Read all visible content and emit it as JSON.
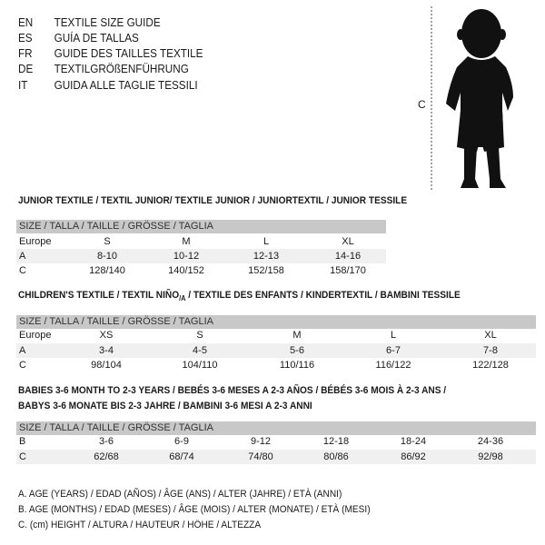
{
  "languages": [
    {
      "code": "EN",
      "title": "TEXTILE SIZE GUIDE"
    },
    {
      "code": "ES",
      "title": "GUÍA DE TALLAS"
    },
    {
      "code": "FR",
      "title": "GUIDE DES TAILLES TEXTILE"
    },
    {
      "code": "DE",
      "title": "TEXTILGRÖßENFÜHRUNG"
    },
    {
      "code": "IT",
      "title": "GUIDA ALLE TAGLIE TESSILI"
    }
  ],
  "figure": {
    "measure_label": "C",
    "icon": "child-silhouette"
  },
  "size_header": "SIZE / TALLA / TAILLE / GRÖSSE / TAGLIA",
  "junior": {
    "title": "JUNIOR TEXTILE / TEXTIL JUNIOR/ TEXTILE JUNIOR / JUNIORTEXTIL / JUNIOR TESSILE",
    "rows": [
      {
        "label": "Europe",
        "values": [
          "S",
          "M",
          "L",
          "XL"
        ]
      },
      {
        "label": "A",
        "values": [
          "8-10",
          "10-12",
          "12-13",
          "14-16"
        ]
      },
      {
        "label": "C",
        "values": [
          "128/140",
          "140/152",
          "152/158",
          "158/170"
        ]
      }
    ]
  },
  "children": {
    "title_pre": "CHILDREN'S TEXTILE / TEXTIL NIÑO",
    "title_sub": "/A",
    "title_post": " / TEXTILE DES ENFANTS / KINDERTEXTIL / BAMBINI TESSILE",
    "rows": [
      {
        "label": "Europe",
        "values": [
          "XS",
          "S",
          "M",
          "L",
          "XL"
        ]
      },
      {
        "label": "A",
        "values": [
          "3-4",
          "4-5",
          "5-6",
          "6-7",
          "7-8"
        ]
      },
      {
        "label": "C",
        "values": [
          "98/104",
          "104/110",
          "110/116",
          "116/122",
          "122/128"
        ]
      }
    ]
  },
  "babies": {
    "title_line1": "BABIES 3-6 MONTH TO 2-3 YEARS / BEBÉS 3-6 MESES A 2-3 AÑOS / BÉBÉS 3-6 MOIS À 2-3 ANS /",
    "title_line2": "BABYS 3-6 MONATE BIS 2-3 JAHRE / BAMBINI 3-6 MESI A 2-3 ANNI",
    "rows": [
      {
        "label": "B",
        "values": [
          "3-6",
          "6-9",
          "9-12",
          "12-18",
          "18-24",
          "24-36"
        ]
      },
      {
        "label": "C",
        "values": [
          "62/68",
          "68/74",
          "74/80",
          "80/86",
          "86/92",
          "92/98"
        ]
      }
    ]
  },
  "legend": [
    "A. AGE (YEARS) / EDAD (AÑOS) / ÂGE (ANS) / ALTER (JAHRE) / ETÀ (ANNI)",
    "B. AGE (MONTHS) / EDAD (MESES) / ÂGE (MOIS) / ALTER (MONATE) / ETÀ (MESI)",
    "C. (cm) HEIGHT / ALTURA / HAUTEUR / HÖHE / ALTEZZA"
  ]
}
